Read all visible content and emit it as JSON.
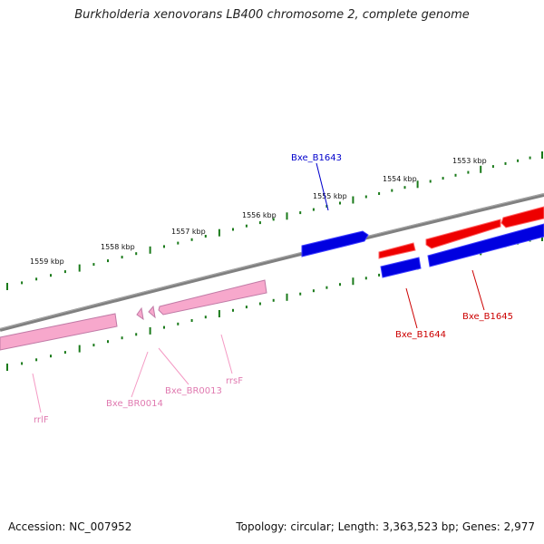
{
  "title": "Burkholderia xenovorans LB400 chromosome 2, complete genome",
  "footer": {
    "accession": "Accession: NC_007952",
    "summary": "Topology: circular; Length: 3,363,523 bp; Genes: 2,977"
  },
  "colors": {
    "backbone": "#808080",
    "tick": "#1a7a1a",
    "forward_cds": "#ee0000",
    "reverse_cds": "#0000e0",
    "rna": "#f7a8cc",
    "rna_edge": "#b86a9a"
  },
  "ticks": [
    {
      "label": "1553 kbp"
    },
    {
      "label": "1554 kbp"
    },
    {
      "label": "1555 kbp"
    },
    {
      "label": "1556 kbp"
    },
    {
      "label": "1557 kbp"
    },
    {
      "label": "1558 kbp"
    },
    {
      "label": "1559 kbp"
    }
  ],
  "features": [
    {
      "label": "Bxe_B1643",
      "type": "CDS",
      "strand": "reverse",
      "color": "#0000cc"
    },
    {
      "label": "Bxe_B1644",
      "type": "CDS",
      "strand": "forward",
      "color": "#cc0000"
    },
    {
      "label": "Bxe_B1645",
      "type": "CDS",
      "strand": "forward",
      "color": "#cc0000"
    },
    {
      "label": "Bxe_BR0013",
      "type": "tRNA",
      "strand": "reverse",
      "color": "#e07ab0"
    },
    {
      "label": "Bxe_BR0014",
      "type": "tRNA",
      "strand": "reverse",
      "color": "#e07ab0"
    },
    {
      "label": "rrsF",
      "type": "rRNA",
      "strand": "reverse",
      "color": "#e07ab0"
    },
    {
      "label": "rrlF",
      "type": "rRNA",
      "strand": "reverse",
      "color": "#e07ab0"
    }
  ]
}
